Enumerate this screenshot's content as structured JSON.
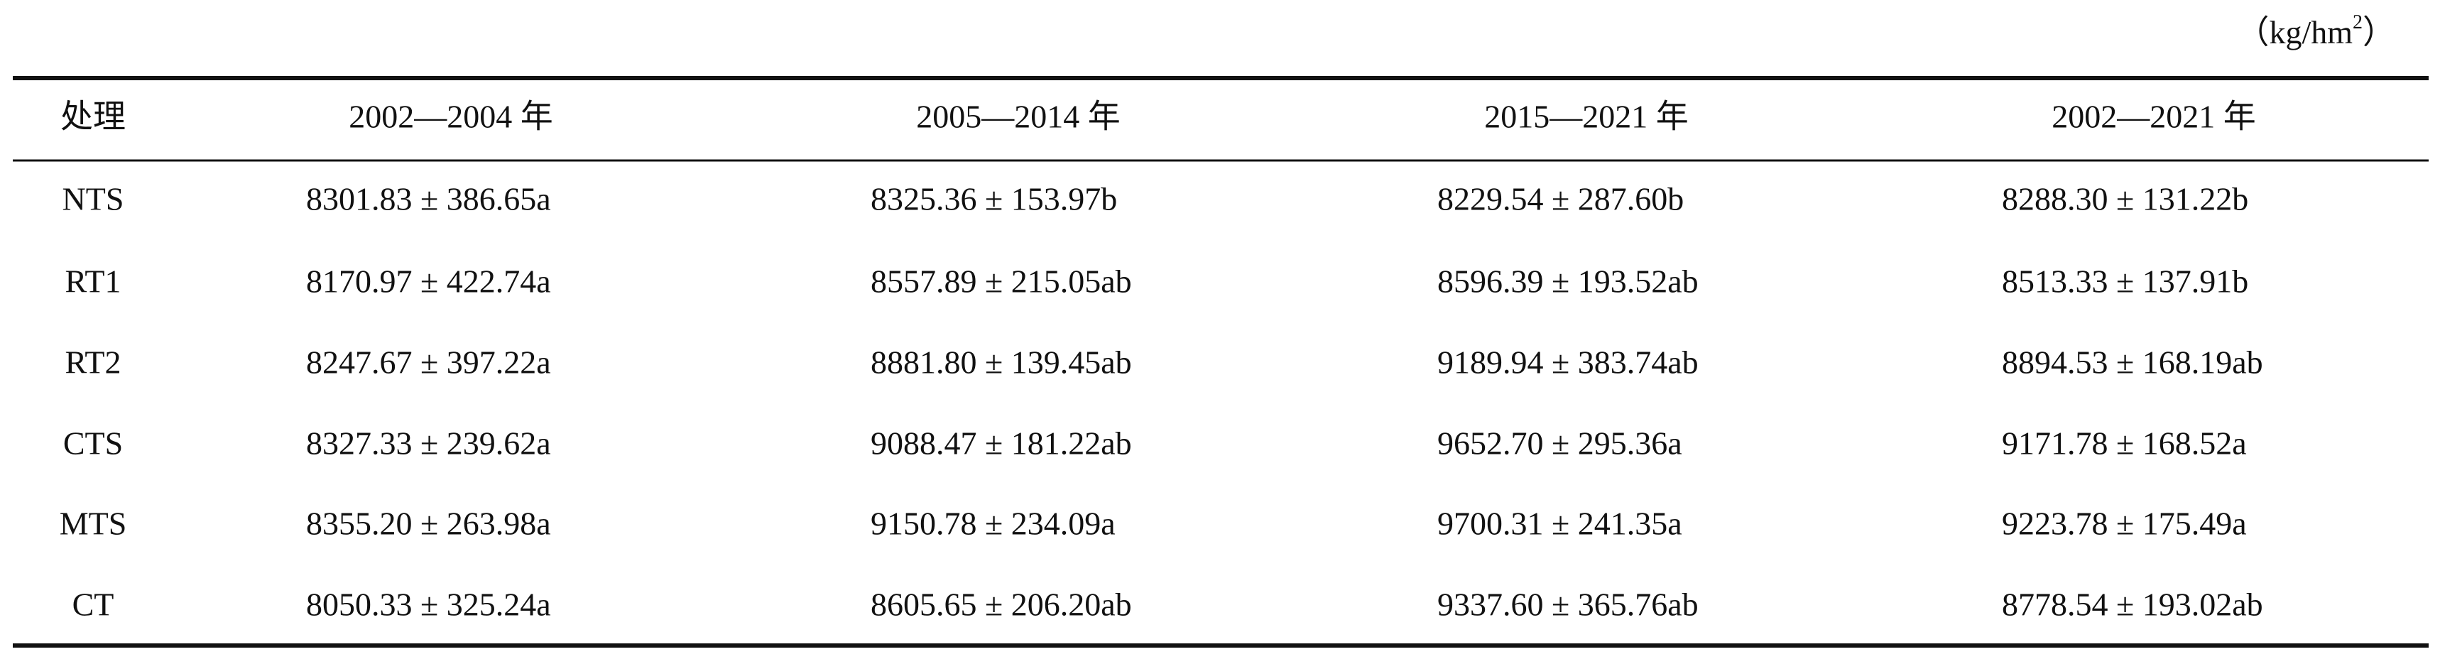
{
  "table": {
    "unit_prefix": "（kg/hm",
    "unit_superscript": "2",
    "unit_suffix": "）",
    "header": [
      "处理",
      "2002—2004 年",
      "2005—2014 年",
      "2015—2021 年",
      "2002—2021 年"
    ],
    "rows": [
      [
        "NTS",
        "8301.83 ± 386.65a",
        "8325.36 ± 153.97b",
        "8229.54 ± 287.60b",
        "8288.30 ± 131.22b"
      ],
      [
        "RT1",
        "8170.97 ± 422.74a",
        "8557.89 ± 215.05ab",
        "8596.39 ± 193.52ab",
        "8513.33 ± 137.91b"
      ],
      [
        "RT2",
        "8247.67 ± 397.22a",
        "8881.80 ± 139.45ab",
        "9189.94 ± 383.74ab",
        "8894.53 ± 168.19ab"
      ],
      [
        "CTS",
        "8327.33 ± 239.62a",
        "9088.47 ± 181.22ab",
        "9652.70 ± 295.36a",
        "9171.78 ± 168.52a"
      ],
      [
        "MTS",
        "8355.20 ± 263.98a",
        "9150.78 ± 234.09a",
        "9700.31 ± 241.35a",
        "9223.78 ± 175.49a"
      ],
      [
        "CT",
        "8050.33 ± 325.24a",
        "8605.65 ± 206.20ab",
        "9337.60 ± 365.76ab",
        "8778.54 ± 193.02ab"
      ]
    ]
  }
}
